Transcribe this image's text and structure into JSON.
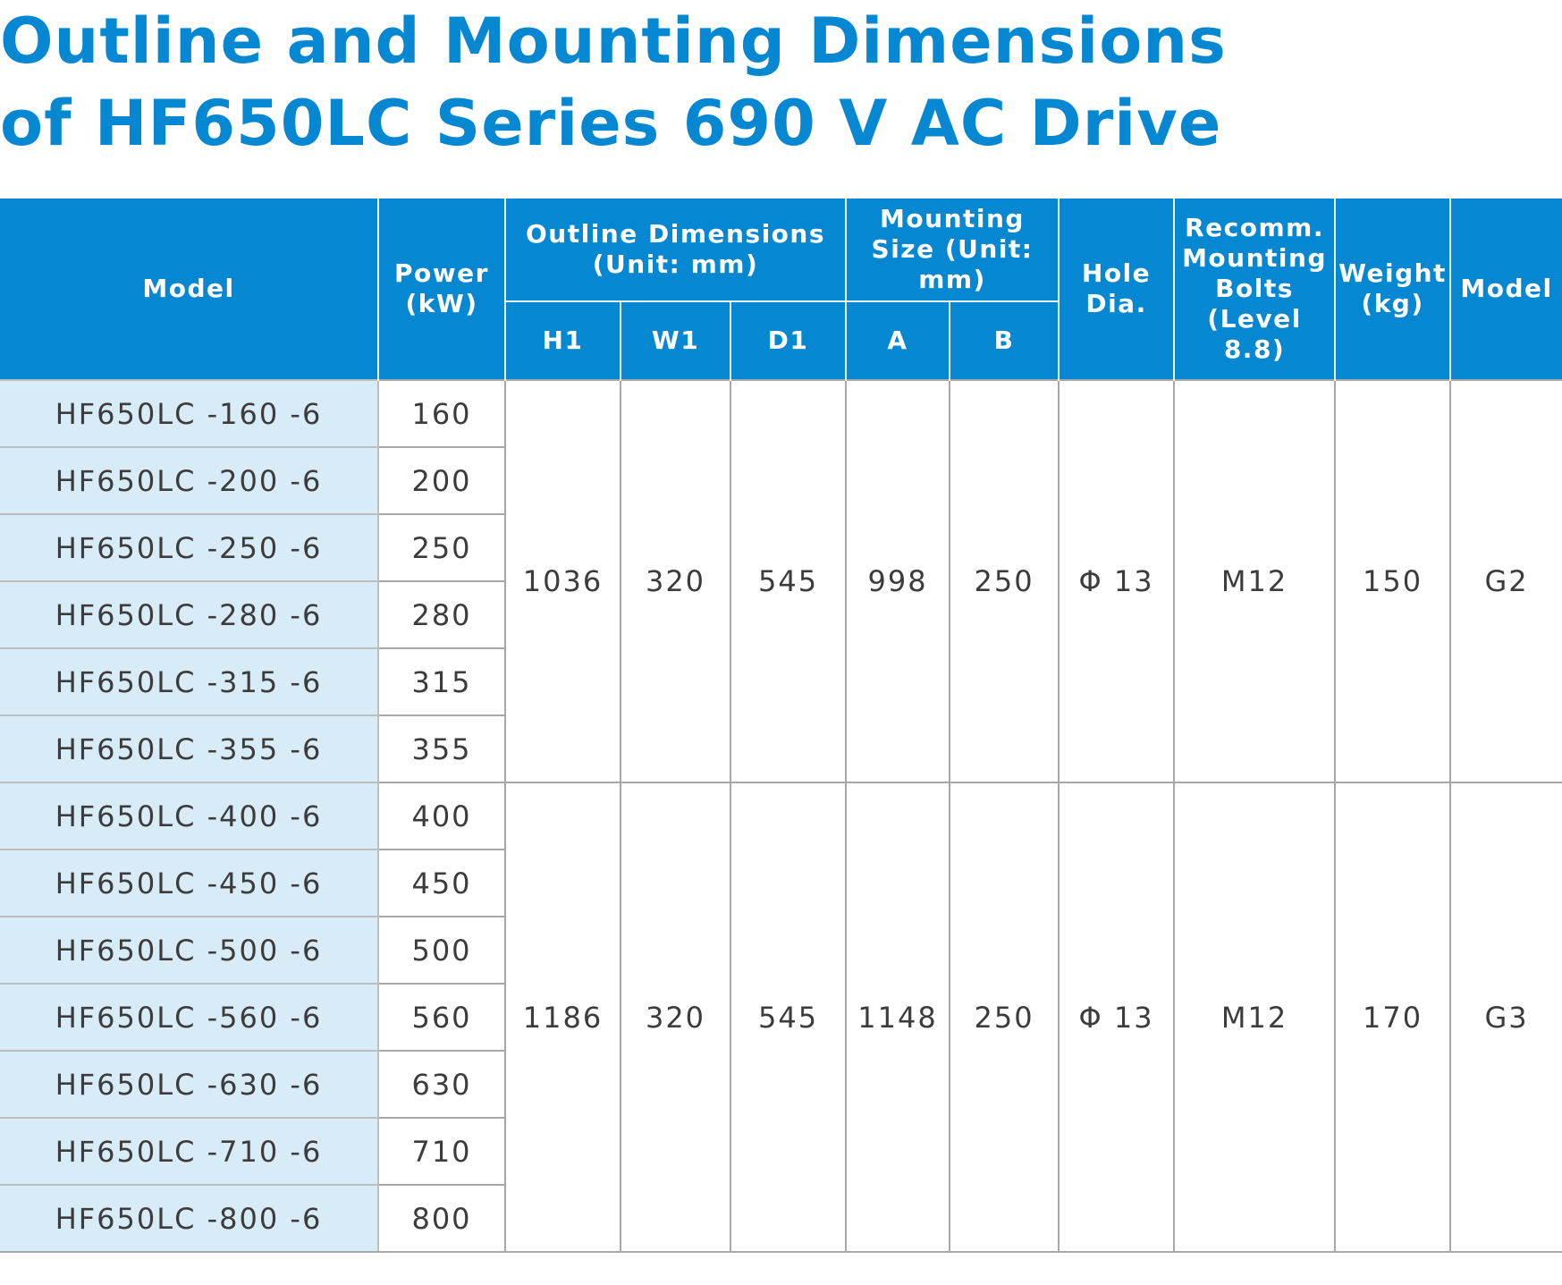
{
  "title": {
    "line1": "Outline and Mounting Dimensions",
    "line2": "of HF650LC Series 690 V AC Drive"
  },
  "headers": {
    "model": "Model",
    "power": "Power (kW)",
    "outline_group": "Outline Dimensions (Unit: mm)",
    "h1": "H1",
    "w1": "W1",
    "d1": "D1",
    "mounting_group": "Mounting Size (Unit: mm)",
    "a": "A",
    "b": "B",
    "hole": "Hole Dia.",
    "bolts": "Recomm. Mounting Bolts (Level 8.8)",
    "weight": "Weight (kg)",
    "frame": "Model"
  },
  "rows": [
    {
      "model": "HF650LC -160 -6",
      "power": "160"
    },
    {
      "model": "HF650LC -200 -6",
      "power": "200"
    },
    {
      "model": "HF650LC -250 -6",
      "power": "250"
    },
    {
      "model": "HF650LC -280 -6",
      "power": "280"
    },
    {
      "model": "HF650LC -315 -6",
      "power": "315"
    },
    {
      "model": "HF650LC -355 -6",
      "power": "355"
    },
    {
      "model": "HF650LC -400 -6",
      "power": "400"
    },
    {
      "model": "HF650LC -450 -6",
      "power": "450"
    },
    {
      "model": "HF650LC -500 -6",
      "power": "500"
    },
    {
      "model": "HF650LC -560 -6",
      "power": "560"
    },
    {
      "model": "HF650LC -630 -6",
      "power": "630"
    },
    {
      "model": "HF650LC -710 -6",
      "power": "710"
    },
    {
      "model": "HF650LC -800 -6",
      "power": "800"
    }
  ],
  "groups": [
    {
      "h1": "1036",
      "w1": "320",
      "d1": "545",
      "a": "998",
      "b": "250",
      "hole": "Φ 13",
      "bolts": "M12",
      "weight": "150",
      "frame": "G2"
    },
    {
      "h1": "1186",
      "w1": "320",
      "d1": "545",
      "a": "1148",
      "b": "250",
      "hole": "Φ 13",
      "bolts": "M12",
      "weight": "170",
      "frame": "G3"
    }
  ],
  "colors": {
    "brand_blue": "#0587d2",
    "model_cell_bg": "#d8ecf8",
    "grid_line": "#a7a7a7"
  }
}
